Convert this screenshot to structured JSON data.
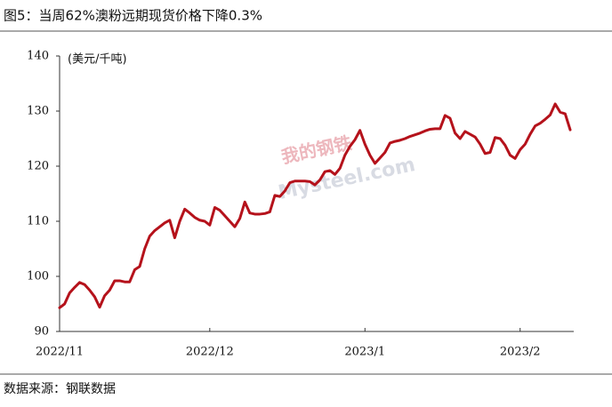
{
  "chart_data": {
    "type": "line",
    "title": "图5：当周62%澳粉远期现货价格下降0.3%",
    "y_label": "(美元/千吨)",
    "watermark_logo": "我的钢铁",
    "watermark_text": "Mysteel.com",
    "categories": [
      "2022/11",
      null,
      null,
      null,
      null,
      null,
      null,
      null,
      null,
      null,
      null,
      null,
      null,
      null,
      null,
      null,
      null,
      null,
      null,
      null,
      null,
      null,
      null,
      null,
      null,
      null,
      null,
      null,
      null,
      null,
      "2022/12",
      null,
      null,
      null,
      null,
      null,
      null,
      null,
      null,
      null,
      null,
      null,
      null,
      null,
      null,
      null,
      null,
      null,
      null,
      null,
      null,
      null,
      null,
      null,
      null,
      null,
      null,
      null,
      null,
      null,
      null,
      "2023/1",
      null,
      null,
      null,
      null,
      null,
      null,
      null,
      null,
      null,
      null,
      null,
      null,
      null,
      null,
      null,
      null,
      null,
      null,
      null,
      null,
      null,
      null,
      null,
      null,
      null,
      null,
      null,
      null,
      null,
      null,
      "2023/2",
      null,
      null,
      null,
      null,
      null,
      null,
      null,
      null,
      null,
      null
    ],
    "series": [
      {
        "name": "62%澳粉远期现货价格",
        "color": "#b5121b",
        "values": [
          94.3,
          95.0,
          97.0,
          98.0,
          98.9,
          98.5,
          97.5,
          96.3,
          94.4,
          96.5,
          97.5,
          99.2,
          99.2,
          99.0,
          99.0,
          101.2,
          101.8,
          105.0,
          107.3,
          108.3,
          109.0,
          109.7,
          110.2,
          107.0,
          110.0,
          112.2,
          111.5,
          110.7,
          110.2,
          110.0,
          109.3,
          112.5,
          112.0,
          111.0,
          110.0,
          109.0,
          110.5,
          113.5,
          111.5,
          111.3,
          111.3,
          111.4,
          111.7,
          114.7,
          114.5,
          115.5,
          117.0,
          117.3,
          117.3,
          117.3,
          117.2,
          116.6,
          117.5,
          119.0,
          119.2,
          118.5,
          119.6,
          122.0,
          123.6,
          124.8,
          126.5,
          124.0,
          122.0,
          120.5,
          121.5,
          122.5,
          124.2,
          124.5,
          124.7,
          125.0,
          125.4,
          125.7,
          126.0,
          126.4,
          126.7,
          126.8,
          126.8,
          129.2,
          128.7,
          126.0,
          125.0,
          126.3,
          125.8,
          125.3,
          124.0,
          122.3,
          122.5,
          125.2,
          125.0,
          123.8,
          122.0,
          121.4,
          123.0,
          124.0,
          125.8,
          127.3,
          127.8,
          128.5,
          129.3,
          131.3,
          129.8,
          129.5,
          126.6
        ]
      }
    ],
    "ylim": [
      90,
      140
    ],
    "yticks": [
      90,
      100,
      110,
      120,
      130,
      140
    ],
    "grid": false
  },
  "source": "数据来源：钢联数据"
}
